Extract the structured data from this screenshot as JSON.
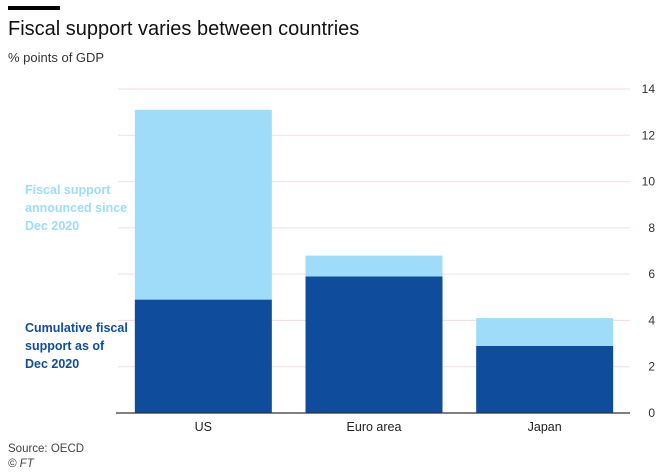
{
  "header": {
    "title": "Fiscal support varies between countries",
    "subtitle": "% points of GDP"
  },
  "footer": {
    "source": "Source: OECD",
    "credit": "© FT"
  },
  "colors": {
    "cumulative": "#0f4d9c",
    "announced": "#9edcfa",
    "grid": "#f2dde2",
    "axis": "#333333"
  },
  "chart_data": {
    "type": "bar",
    "stacked": true,
    "title": "Fiscal support varies between countries",
    "subtitle": "% points of GDP",
    "categories": [
      "US",
      "Euro area",
      "Japan"
    ],
    "series": [
      {
        "name": "Cumulative fiscal\nsupport as of\nDec 2020",
        "values": [
          4.9,
          5.9,
          2.9
        ],
        "color": "#0f4d9c"
      },
      {
        "name": "Fiscal support\nannounced since\nDec 2020",
        "values": [
          8.2,
          0.9,
          1.2
        ],
        "color": "#9edcfa"
      }
    ],
    "ylim": [
      0,
      14
    ],
    "yticks": [
      0,
      2,
      4,
      6,
      8,
      10,
      12,
      14
    ],
    "y_axis_side": "right",
    "grid": true,
    "legend": "left, inline labels"
  }
}
